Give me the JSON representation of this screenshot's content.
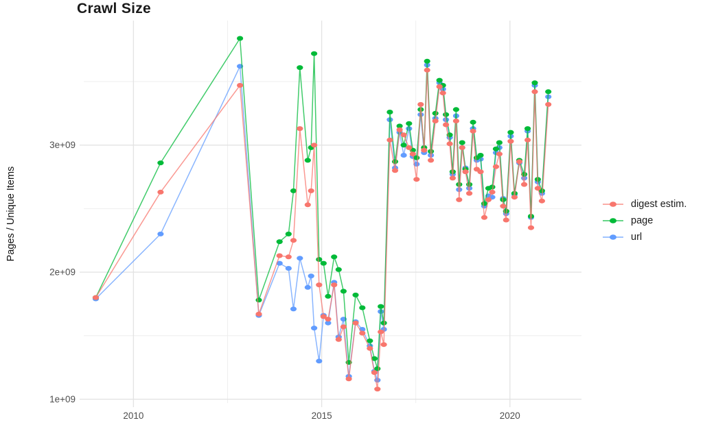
{
  "chart_data": {
    "type": "line",
    "title": "Crawl Size",
    "xlabel": "",
    "ylabel": "Pages / Unique Items",
    "grid": true,
    "legend_position": "right",
    "x_unit": "year (decimal, crawl date)",
    "y_unit": "count (pages / unique items)",
    "xlim": [
      2008.68,
      2021.9
    ],
    "ylim": [
      970000000.0,
      3980000000.0
    ],
    "x_ticks": [
      {
        "v": 2010,
        "label": "2010"
      },
      {
        "v": 2015,
        "label": "2015"
      },
      {
        "v": 2020,
        "label": "2020"
      }
    ],
    "x_minor_ticks": [
      2012.5,
      2017.5
    ],
    "y_ticks": [
      {
        "v": 1000000000.0,
        "label": "1e+09"
      },
      {
        "v": 2000000000.0,
        "label": "2e+09"
      },
      {
        "v": 3000000000.0,
        "label": "3e+09"
      }
    ],
    "y_minor_ticks": [
      1500000000.0,
      2500000000.0,
      3500000000.0
    ],
    "x": [
      2009.0,
      2010.72,
      2012.83,
      2013.33,
      2013.88,
      2014.12,
      2014.25,
      2014.42,
      2014.63,
      2014.72,
      2014.8,
      2014.93,
      2015.05,
      2015.17,
      2015.33,
      2015.45,
      2015.58,
      2015.72,
      2015.9,
      2016.08,
      2016.28,
      2016.4,
      2016.48,
      2016.57,
      2016.65,
      2016.81,
      2016.95,
      2017.07,
      2017.18,
      2017.32,
      2017.42,
      2017.52,
      2017.63,
      2017.72,
      2017.8,
      2017.9,
      2018.02,
      2018.13,
      2018.22,
      2018.3,
      2018.4,
      2018.48,
      2018.57,
      2018.65,
      2018.73,
      2018.82,
      2018.92,
      2019.02,
      2019.12,
      2019.22,
      2019.32,
      2019.43,
      2019.53,
      2019.63,
      2019.72,
      2019.82,
      2019.9,
      2020.02,
      2020.12,
      2020.25,
      2020.38,
      2020.47,
      2020.56,
      2020.66,
      2020.74,
      2020.85,
      2021.02
    ],
    "series": [
      {
        "name": "digest estim.",
        "color": "#F8766D",
        "values": [
          1800000000.0,
          2630000000.0,
          3470000000.0,
          1670000000.0,
          2130000000.0,
          2120000000.0,
          2250000000.0,
          3130000000.0,
          2530000000.0,
          2640000000.0,
          3000000000.0,
          1900000000.0,
          1650000000.0,
          1630000000.0,
          1900000000.0,
          1470000000.0,
          1570000000.0,
          1160000000.0,
          1600000000.0,
          1520000000.0,
          1400000000.0,
          1210000000.0,
          1080000000.0,
          1530000000.0,
          1430000000.0,
          3040000000.0,
          2800000000.0,
          3120000000.0,
          3080000000.0,
          2980000000.0,
          2930000000.0,
          2730000000.0,
          3320000000.0,
          2960000000.0,
          3590000000.0,
          2880000000.0,
          3190000000.0,
          3460000000.0,
          3410000000.0,
          3160000000.0,
          3010000000.0,
          2740000000.0,
          3190000000.0,
          2570000000.0,
          2980000000.0,
          2790000000.0,
          2620000000.0,
          3110000000.0,
          2810000000.0,
          2790000000.0,
          2430000000.0,
          2570000000.0,
          2630000000.0,
          2830000000.0,
          2930000000.0,
          2520000000.0,
          2410000000.0,
          3030000000.0,
          2590000000.0,
          2870000000.0,
          2690000000.0,
          3040000000.0,
          2350000000.0,
          3420000000.0,
          2660000000.0,
          2560000000.0,
          3320000000.0
        ]
      },
      {
        "name": "page",
        "color": "#00BA38",
        "values": [
          1800000000.0,
          2860000000.0,
          3840000000.0,
          1780000000.0,
          2240000000.0,
          2300000000.0,
          2640000000.0,
          3610000000.0,
          2880000000.0,
          2980000000.0,
          3720000000.0,
          2100000000.0,
          2070000000.0,
          1810000000.0,
          2120000000.0,
          2020000000.0,
          1850000000.0,
          1290000000.0,
          1820000000.0,
          1720000000.0,
          1460000000.0,
          1320000000.0,
          1240000000.0,
          1730000000.0,
          1600000000.0,
          3260000000.0,
          2870000000.0,
          3150000000.0,
          3000000000.0,
          3170000000.0,
          2960000000.0,
          2900000000.0,
          3280000000.0,
          2980000000.0,
          3660000000.0,
          2950000000.0,
          3250000000.0,
          3510000000.0,
          3470000000.0,
          3240000000.0,
          3080000000.0,
          2790000000.0,
          3280000000.0,
          2690000000.0,
          3020000000.0,
          2810000000.0,
          2690000000.0,
          3180000000.0,
          2900000000.0,
          2920000000.0,
          2540000000.0,
          2660000000.0,
          2670000000.0,
          2970000000.0,
          3020000000.0,
          2570000000.0,
          2480000000.0,
          3100000000.0,
          2620000000.0,
          2880000000.0,
          2770000000.0,
          3130000000.0,
          2440000000.0,
          3490000000.0,
          2730000000.0,
          2640000000.0,
          3420000000.0
        ]
      },
      {
        "name": "url",
        "color": "#619CFF",
        "values": [
          1790000000.0,
          2300000000.0,
          3620000000.0,
          1660000000.0,
          2070000000.0,
          2030000000.0,
          1710000000.0,
          2110000000.0,
          1880000000.0,
          1970000000.0,
          1560000000.0,
          1300000000.0,
          1660000000.0,
          1600000000.0,
          1920000000.0,
          1490000000.0,
          1630000000.0,
          1180000000.0,
          1610000000.0,
          1550000000.0,
          1420000000.0,
          1220000000.0,
          1150000000.0,
          1690000000.0,
          1550000000.0,
          3200000000.0,
          2820000000.0,
          3100000000.0,
          2920000000.0,
          3130000000.0,
          2910000000.0,
          2850000000.0,
          3240000000.0,
          2940000000.0,
          3630000000.0,
          2920000000.0,
          3210000000.0,
          3490000000.0,
          3440000000.0,
          3200000000.0,
          3060000000.0,
          2770000000.0,
          3230000000.0,
          2650000000.0,
          2980000000.0,
          2820000000.0,
          2660000000.0,
          3130000000.0,
          2880000000.0,
          2890000000.0,
          2520000000.0,
          2600000000.0,
          2590000000.0,
          2940000000.0,
          2980000000.0,
          2580000000.0,
          2460000000.0,
          3070000000.0,
          2610000000.0,
          2860000000.0,
          2740000000.0,
          3110000000.0,
          2430000000.0,
          3470000000.0,
          2710000000.0,
          2620000000.0,
          3380000000.0
        ]
      }
    ]
  },
  "colors": {
    "background": "#ffffff",
    "grid_major": "#e3e3e3",
    "grid_minor": "#eeeeee",
    "tick_label": "#4d4d4d",
    "text": "#1a1a1a"
  }
}
